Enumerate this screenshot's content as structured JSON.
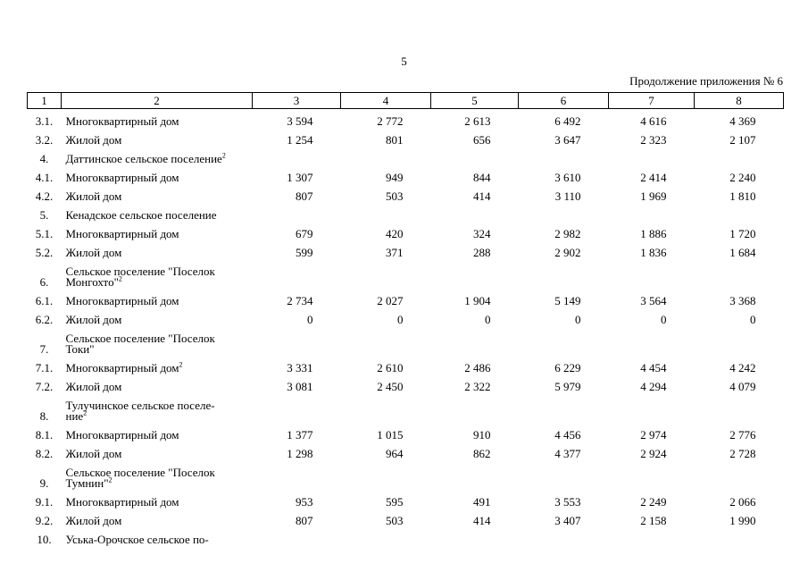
{
  "page_number": "5",
  "continuation": "Продолжение приложения № 6",
  "table": {
    "header": [
      "1",
      "2",
      "3",
      "4",
      "5",
      "6",
      "7",
      "8"
    ],
    "rows": [
      {
        "num": "3.1.",
        "name": "Многоквартирный дом",
        "values": [
          "3 594",
          "2 772",
          "2 613",
          "6 492",
          "4 616",
          "4 369"
        ]
      },
      {
        "num": "3.2.",
        "name": "Жилой дом",
        "values": [
          "1 254",
          "801",
          "656",
          "3 647",
          "2 323",
          "2 107"
        ]
      },
      {
        "num": "4.",
        "name": "Даттинское сельское поселение",
        "note": "2"
      },
      {
        "num": "4.1.",
        "name": "Многоквартирный дом",
        "values": [
          "1 307",
          "949",
          "844",
          "3 610",
          "2 414",
          "2 240"
        ]
      },
      {
        "num": "4.2.",
        "name": "Жилой дом",
        "values": [
          "807",
          "503",
          "414",
          "3 110",
          "1 969",
          "1 810"
        ]
      },
      {
        "num": "5.",
        "name": "Кенадское сельское поселение"
      },
      {
        "num": "5.1.",
        "name": "Многоквартирный дом",
        "values": [
          "679",
          "420",
          "324",
          "2 982",
          "1 886",
          "1 720"
        ]
      },
      {
        "num": "5.2.",
        "name": "Жилой дом",
        "values": [
          "599",
          "371",
          "288",
          "2 902",
          "1 836",
          "1 684"
        ]
      },
      {
        "num": "6.",
        "name": "Сельское поселение \"Поселок\nМонгохто\"",
        "note": "2"
      },
      {
        "num": "6.1.",
        "name": "Многоквартирный дом",
        "values": [
          "2 734",
          "2 027",
          "1 904",
          "5 149",
          "3 564",
          "3 368"
        ]
      },
      {
        "num": "6.2.",
        "name": "Жилой дом",
        "values": [
          "0",
          "0",
          "0",
          "0",
          "0",
          "0"
        ]
      },
      {
        "num": "7.",
        "name": "Сельское поселение \"Поселок\nТоки\""
      },
      {
        "num": "7.1.",
        "name": "Многоквартирный дом",
        "note": "2",
        "values": [
          "3 331",
          "2 610",
          "2 486",
          "6 229",
          "4 454",
          "4 242"
        ]
      },
      {
        "num": "7.2.",
        "name": "Жилой дом",
        "values": [
          "3 081",
          "2 450",
          "2 322",
          "5 979",
          "4 294",
          "4 079"
        ]
      },
      {
        "num": "8.",
        "name": "Тулучинское сельское поселе-\nние",
        "note": "2"
      },
      {
        "num": "8.1.",
        "name": "Многоквартирный дом",
        "values": [
          "1 377",
          "1 015",
          "910",
          "4 456",
          "2 974",
          "2 776"
        ]
      },
      {
        "num": "8.2.",
        "name": "Жилой дом",
        "values": [
          "1 298",
          "964",
          "862",
          "4 377",
          "2 924",
          "2 728"
        ]
      },
      {
        "num": "9.",
        "name": "Сельское поселение \"Поселок\nТумнин\"",
        "note": "2"
      },
      {
        "num": "9.1.",
        "name": "Многоквартирный дом",
        "values": [
          "953",
          "595",
          "491",
          "3 553",
          "2 249",
          "2 066"
        ]
      },
      {
        "num": "9.2.",
        "name": "Жилой дом",
        "values": [
          "807",
          "503",
          "414",
          "3 407",
          "2 158",
          "1 990"
        ]
      },
      {
        "num": "10.",
        "name": "Уська-Орочское сельское по-"
      }
    ]
  }
}
